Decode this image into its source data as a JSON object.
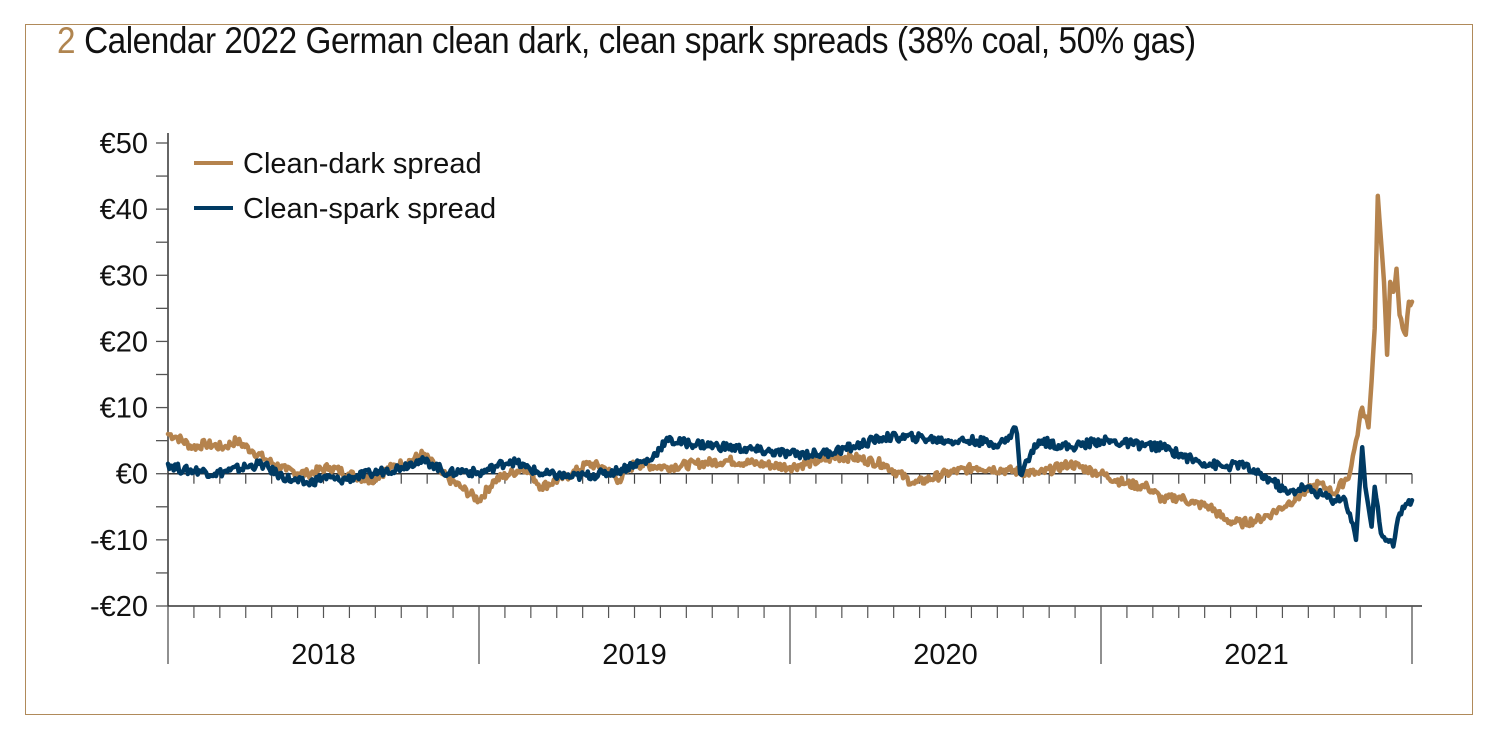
{
  "figure": {
    "number": "2",
    "title": "Calendar 2022 German clean dark, clean spark spreads (38% coal, 50% gas)"
  },
  "colors": {
    "frame": "#b08a5a",
    "clean_dark": "#b5834d",
    "clean_spark": "#003a63",
    "axis": "#333333",
    "title_number": "#b08550"
  },
  "chart_data": {
    "type": "line",
    "title": "Calendar 2022 German clean dark, clean spark spreads (38% coal, 50% gas)",
    "xlabel": "",
    "ylabel": "",
    "x_range": [
      2018.0,
      2022.0
    ],
    "ylim": [
      -20,
      50
    ],
    "y_ticks": [
      -20,
      -10,
      0,
      10,
      20,
      30,
      40,
      50
    ],
    "y_tick_labels": [
      "-€20",
      "-€10",
      "€0",
      "€10",
      "€20",
      "€30",
      "€40",
      "€50"
    ],
    "x_tick_labels": [
      "2018",
      "2019",
      "2020",
      "2021"
    ],
    "x_minor_ticks": "monthly",
    "grid": false,
    "legend_position": "top-left",
    "series": [
      {
        "name": "Clean-dark spread",
        "color": "#b5834d",
        "x": [
          2018.0,
          2018.03,
          2018.08,
          2018.12,
          2018.18,
          2018.22,
          2018.27,
          2018.32,
          2018.38,
          2018.45,
          2018.52,
          2018.58,
          2018.65,
          2018.72,
          2018.78,
          2018.82,
          2018.88,
          2018.94,
          2019.0,
          2019.05,
          2019.1,
          2019.15,
          2019.2,
          2019.3,
          2019.35,
          2019.4,
          2019.45,
          2019.5,
          2019.6,
          2019.7,
          2019.8,
          2019.9,
          2020.0,
          2020.1,
          2020.15,
          2020.2,
          2020.3,
          2020.4,
          2020.5,
          2020.6,
          2020.7,
          2020.8,
          2020.9,
          2021.0,
          2021.08,
          2021.15,
          2021.2,
          2021.25,
          2021.3,
          2021.35,
          2021.4,
          2021.45,
          2021.5,
          2021.55,
          2021.6,
          2021.65,
          2021.7,
          2021.75,
          2021.8,
          2021.82,
          2021.84,
          2021.86,
          2021.87,
          2021.88,
          2021.89,
          2021.91,
          2021.92,
          2021.93,
          2021.94,
          2021.95,
          2021.96,
          2021.98,
          2021.99,
          2022.0
        ],
        "values": [
          6,
          5.5,
          4,
          4.5,
          4,
          5,
          3.5,
          2,
          0.5,
          0,
          1,
          0,
          -1,
          1,
          2,
          3,
          0,
          -2,
          -4,
          -1,
          0,
          1,
          -2,
          0,
          1.5,
          1,
          -1,
          1.5,
          1,
          1.5,
          2,
          1.5,
          1,
          2,
          2.5,
          2.5,
          1.5,
          -1.5,
          0,
          1,
          0.5,
          0,
          1.5,
          0,
          -1.5,
          -2,
          -4,
          -3.5,
          -4.5,
          -5,
          -7,
          -7.5,
          -7,
          -6,
          -4.5,
          -3,
          -1.5,
          -3,
          0,
          5,
          10,
          7,
          14,
          22,
          42,
          29,
          18,
          29,
          27.5,
          31,
          24,
          21,
          26,
          26
        ],
        "note": "Sharp rise late 2021 to peak ~€42, ending ~€26"
      },
      {
        "name": "Clean-spark spread",
        "color": "#003a63",
        "x": [
          2018.0,
          2018.05,
          2018.1,
          2018.15,
          2018.2,
          2018.25,
          2018.3,
          2018.35,
          2018.4,
          2018.45,
          2018.5,
          2018.55,
          2018.6,
          2018.65,
          2018.7,
          2018.75,
          2018.8,
          2018.85,
          2018.9,
          2018.95,
          2019.0,
          2019.05,
          2019.1,
          2019.15,
          2019.2,
          2019.3,
          2019.4,
          2019.45,
          2019.5,
          2019.55,
          2019.6,
          2019.7,
          2019.8,
          2019.9,
          2020.0,
          2020.1,
          2020.2,
          2020.3,
          2020.4,
          2020.5,
          2020.6,
          2020.65,
          2020.7,
          2020.72,
          2020.73,
          2020.74,
          2020.8,
          2020.9,
          2021.0,
          2021.1,
          2021.2,
          2021.3,
          2021.4,
          2021.45,
          2021.5,
          2021.55,
          2021.6,
          2021.65,
          2021.7,
          2021.75,
          2021.78,
          2021.8,
          2021.82,
          2021.84,
          2021.85,
          2021.87,
          2021.88,
          2021.89,
          2021.9,
          2021.92,
          2021.94,
          2021.96,
          2021.97,
          2021.99,
          2022.0
        ],
        "values": [
          1.5,
          0.5,
          0.5,
          0,
          0.5,
          1,
          1.5,
          0,
          -1,
          -1.5,
          -0.5,
          -1,
          -0.5,
          0,
          0.5,
          1,
          2,
          1.5,
          0,
          0.5,
          0,
          1,
          2,
          1,
          0,
          -0.5,
          0,
          0.5,
          1.5,
          2,
          5,
          4.5,
          4,
          3.5,
          3,
          3,
          4,
          5.5,
          5.5,
          5,
          5,
          4.5,
          5,
          7,
          6,
          0,
          5,
          4,
          5,
          4.5,
          4,
          2,
          1,
          1.5,
          0,
          -1,
          -3,
          -2,
          -3,
          -4,
          -3.5,
          -6,
          -10,
          4,
          -2,
          -8,
          -2,
          -5,
          -9,
          -10,
          -11,
          -6,
          -5,
          -4,
          -4
        ],
        "note": "Drops negative and becomes volatile late 2021, low ~ -€11"
      }
    ]
  }
}
